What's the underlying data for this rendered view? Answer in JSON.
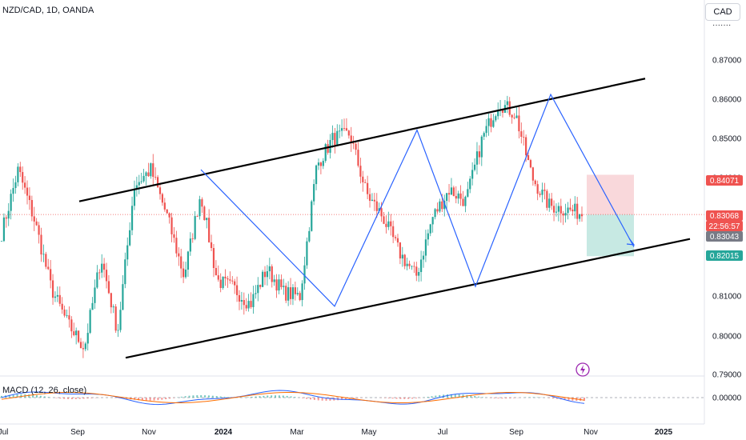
{
  "header": {
    "symbol": "NZD/CAD, 1D, OANDA",
    "currency": "CAD"
  },
  "macd_panel": {
    "label": "MACD (12, 26, close)"
  },
  "colors": {
    "bull": "#26a69a",
    "bear": "#ef5350",
    "zigzag": "#2962ff",
    "channel": "#000000",
    "stop_zone": "#f7c7cc",
    "target_zone": "#b9e3dc",
    "macd_line": "#2962ff",
    "signal_line": "#ff6d00"
  },
  "chart_data": {
    "type": "candlestick",
    "y_ticks": [
      "0.79000",
      "0.80000",
      "0.81000",
      "0.82000",
      "0.83000",
      "0.84000",
      "0.85000",
      "0.86000",
      "0.87000"
    ],
    "macd_ticks": [
      "0.00000"
    ],
    "x_ticks": [
      "Jul",
      "Sep",
      "Nov",
      "2024",
      "Mar",
      "May",
      "Jul",
      "Sep",
      "Nov",
      "2025"
    ],
    "price_tags": [
      {
        "label": "0.84071",
        "color": "#ef5350"
      },
      {
        "label": "0.83068",
        "color": "#ef5350"
      },
      {
        "label": "22:56:57",
        "color": "#ef5350"
      },
      {
        "label": "0.83043",
        "color": "#787b86"
      },
      {
        "label": "0.82015",
        "color": "#26a69a"
      }
    ],
    "channel_upper": [
      [
        0.834,
        0.865
      ]
    ],
    "channel_lower": [
      [
        0.7945,
        0.8245
      ]
    ],
    "zigzag": [
      0.842,
      0.8075,
      0.852,
      0.8125,
      0.861,
      0.8225
    ],
    "candles": [
      0.826,
      0.842,
      0.829,
      0.812,
      0.803,
      0.797,
      0.82,
      0.801,
      0.838,
      0.842,
      0.83,
      0.815,
      0.836,
      0.814,
      0.812,
      0.808,
      0.817,
      0.811,
      0.81,
      0.843,
      0.85,
      0.851,
      0.836,
      0.83,
      0.821,
      0.815,
      0.83,
      0.837,
      0.834,
      0.85,
      0.859,
      0.856,
      0.84,
      0.833,
      0.832,
      0.831
    ]
  }
}
